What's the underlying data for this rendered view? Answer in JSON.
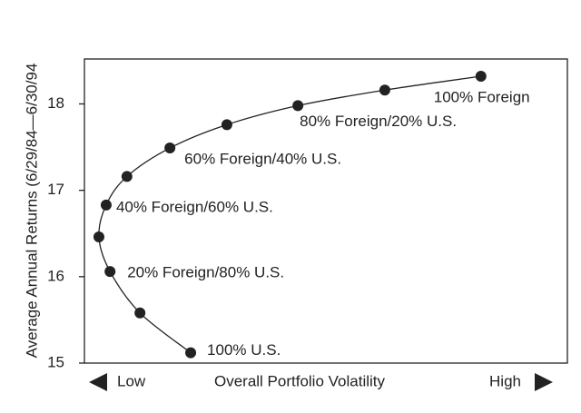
{
  "chart_data": {
    "type": "line",
    "y_label": "Average Annual Returns (6/29/84—6/30/94",
    "x_label": "Overall Portfolio Volatility",
    "x_low_label": "Low",
    "x_high_label": "High",
    "x": [
      2.2,
      1.15,
      0.53,
      0.3,
      0.45,
      0.88,
      1.77,
      2.95,
      4.42,
      6.22,
      8.21
    ],
    "series": [
      {
        "color": "#222222",
        "values": [
          15.12,
          15.58,
          16.06,
          16.46,
          16.83,
          17.16,
          17.49,
          17.76,
          17.98,
          18.16,
          18.32
        ]
      }
    ],
    "annotations": [
      "100% U.S.",
      "20% Foreign/80% U.S.",
      "40% Foreign/60% U.S.",
      "60% Foreign/40% U.S.",
      "80% Foreign/20% U.S.",
      "100% Foreign"
    ],
    "xlim": [
      0,
      10
    ],
    "ylim": [
      15,
      18.52
    ],
    "yticks": [
      15,
      16,
      17,
      18
    ]
  }
}
